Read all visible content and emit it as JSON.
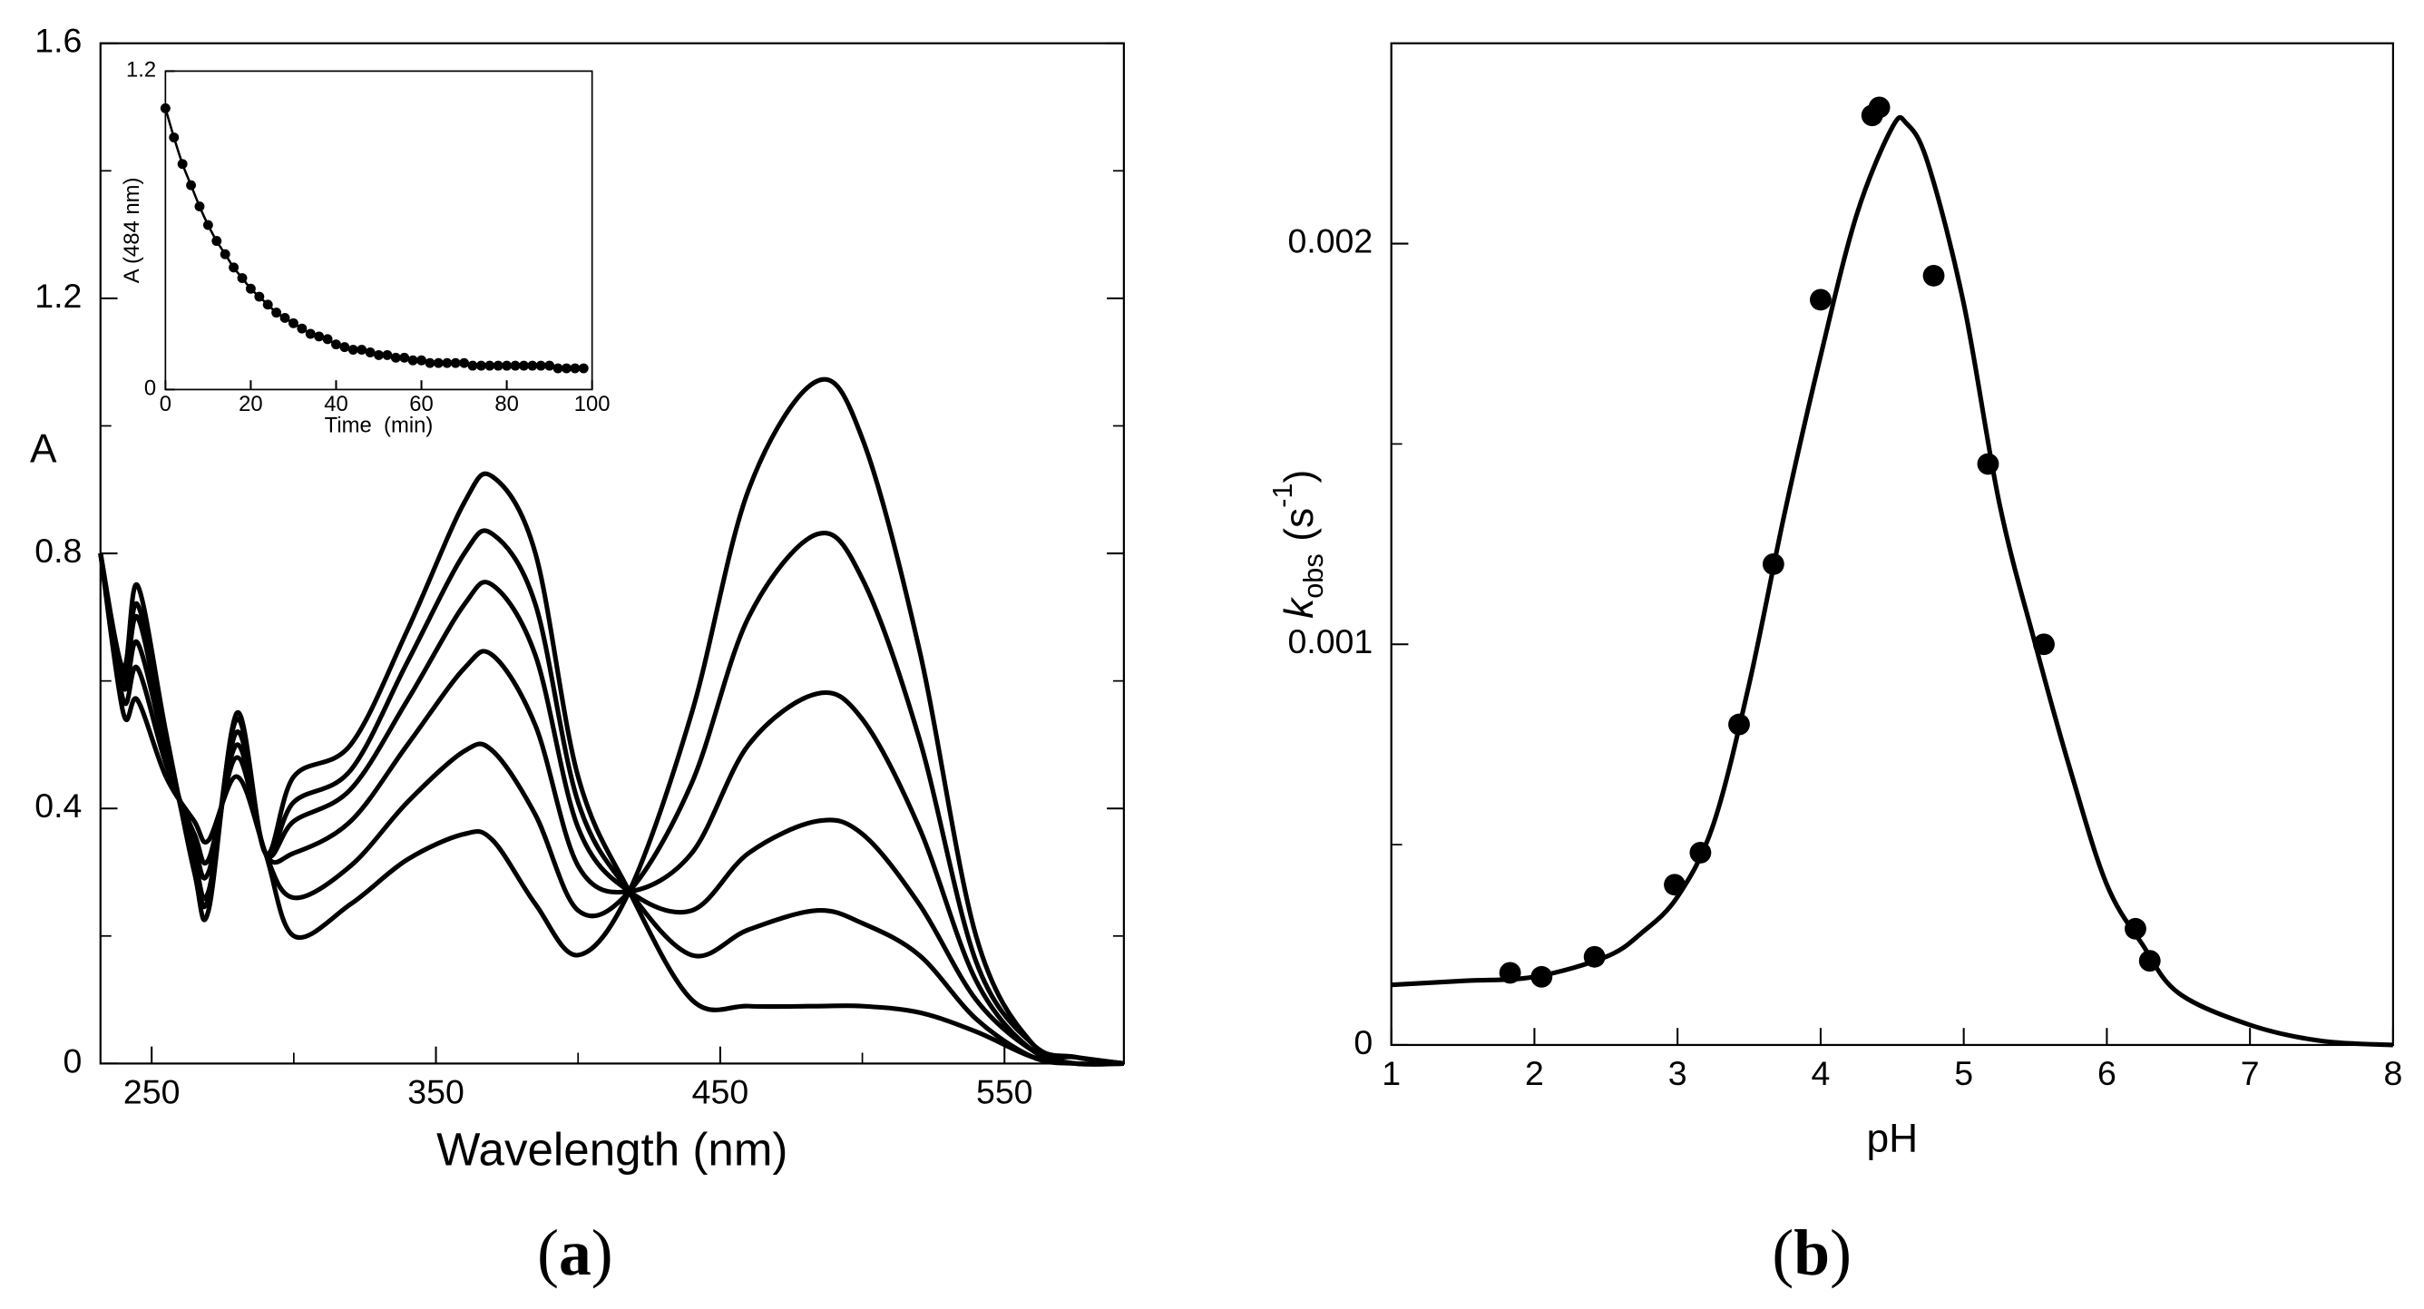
{
  "chart_data": [
    {
      "type": "line",
      "x": [
        232,
        240,
        245,
        255,
        265,
        270,
        280,
        290,
        300,
        320,
        340,
        360,
        370,
        385,
        400,
        418,
        440,
        460,
        484,
        500,
        520,
        540,
        560,
        575,
        592
      ],
      "series": [
        {
          "color": "#000000",
          "values": [
            0.8,
            0.55,
            0.57,
            0.45,
            0.38,
            0.35,
            0.45,
            0.33,
            0.2,
            0.25,
            0.32,
            0.36,
            0.35,
            0.25,
            0.17,
            0.27,
            0.55,
            0.9,
            1.07,
            0.98,
            0.65,
            0.2,
            0.03,
            0.01,
            0.0
          ]
        },
        {
          "color": "#000000",
          "values": [
            0.8,
            0.57,
            0.62,
            0.47,
            0.36,
            0.32,
            0.48,
            0.33,
            0.26,
            0.31,
            0.41,
            0.49,
            0.49,
            0.39,
            0.24,
            0.27,
            0.44,
            0.7,
            0.83,
            0.76,
            0.51,
            0.16,
            0.03,
            0.01,
            0.0
          ]
        },
        {
          "color": "#000000",
          "values": [
            0.8,
            0.59,
            0.66,
            0.49,
            0.34,
            0.3,
            0.5,
            0.33,
            0.33,
            0.38,
            0.5,
            0.62,
            0.64,
            0.53,
            0.31,
            0.27,
            0.33,
            0.5,
            0.58,
            0.54,
            0.37,
            0.13,
            0.02,
            0.01,
            0.0
          ]
        },
        {
          "color": "#000000",
          "values": [
            0.8,
            0.6,
            0.7,
            0.5,
            0.32,
            0.27,
            0.52,
            0.33,
            0.38,
            0.43,
            0.57,
            0.72,
            0.75,
            0.64,
            0.37,
            0.27,
            0.24,
            0.33,
            0.38,
            0.36,
            0.25,
            0.1,
            0.02,
            0.0,
            0.0
          ]
        },
        {
          "color": "#000000",
          "values": [
            0.8,
            0.61,
            0.72,
            0.51,
            0.31,
            0.26,
            0.54,
            0.33,
            0.41,
            0.46,
            0.63,
            0.8,
            0.83,
            0.72,
            0.41,
            0.27,
            0.17,
            0.21,
            0.24,
            0.22,
            0.17,
            0.07,
            0.01,
            0.0,
            0.0
          ]
        },
        {
          "color": "#000000",
          "values": [
            0.8,
            0.62,
            0.75,
            0.52,
            0.3,
            0.24,
            0.55,
            0.33,
            0.45,
            0.5,
            0.68,
            0.88,
            0.92,
            0.8,
            0.45,
            0.27,
            0.1,
            0.09,
            0.09,
            0.09,
            0.08,
            0.05,
            0.01,
            0.0,
            0.0
          ]
        }
      ],
      "xlim": [
        232,
        592
      ],
      "ylim": [
        0,
        1.6
      ],
      "xticks": [
        250,
        350,
        450,
        550
      ],
      "xticks_minor": [
        300,
        400,
        500
      ],
      "yticks": [
        0,
        0.4,
        0.8,
        1.2,
        1.6
      ],
      "yticks_minor": [
        0.2,
        0.6,
        1.0,
        1.4
      ],
      "xlabel": "Wavelength (nm)",
      "ylabel": "A",
      "caption": {
        "open": "(",
        "letter": "a",
        "close": ")"
      }
    },
    {
      "type": "line",
      "markers": true,
      "x": [
        0,
        2,
        4,
        6,
        8,
        10,
        12,
        14,
        16,
        18,
        20,
        22,
        24,
        26,
        28,
        30,
        32,
        34,
        36,
        38,
        40,
        42,
        44,
        46,
        48,
        50,
        52,
        54,
        56,
        58,
        60,
        62,
        64,
        66,
        68,
        70,
        72,
        74,
        76,
        78,
        80,
        82,
        84,
        86,
        88,
        90,
        92,
        94,
        96,
        98
      ],
      "series": [
        {
          "color": "#000000",
          "values": [
            1.06,
            0.95,
            0.85,
            0.77,
            0.69,
            0.62,
            0.56,
            0.51,
            0.46,
            0.42,
            0.38,
            0.35,
            0.32,
            0.29,
            0.27,
            0.25,
            0.23,
            0.21,
            0.2,
            0.19,
            0.17,
            0.16,
            0.15,
            0.15,
            0.14,
            0.13,
            0.13,
            0.12,
            0.12,
            0.11,
            0.11,
            0.1,
            0.1,
            0.1,
            0.1,
            0.1,
            0.09,
            0.09,
            0.09,
            0.09,
            0.09,
            0.09,
            0.09,
            0.09,
            0.09,
            0.09,
            0.08,
            0.08,
            0.08,
            0.08
          ]
        }
      ],
      "xlim": [
        0,
        100
      ],
      "ylim": [
        0,
        1.2
      ],
      "xticks": [
        0,
        20,
        40,
        60,
        80,
        100
      ],
      "yticks": [
        0,
        1.2
      ],
      "xlabel": "Time  (min)",
      "ylabel": "A (484 nm)"
    },
    {
      "type": "scatter",
      "x": [
        1.83,
        2.05,
        2.42,
        2.98,
        3.16,
        3.43,
        3.67,
        4.0,
        4.36,
        4.41,
        4.79,
        5.17,
        5.56,
        6.2,
        6.3
      ],
      "values": [
        0.00018,
        0.00017,
        0.00022,
        0.0004,
        0.00048,
        0.0008,
        0.0012,
        0.00186,
        0.00232,
        0.00234,
        0.00192,
        0.00145,
        0.001,
        0.00029,
        0.00021
      ],
      "color": "#000000",
      "fit": {
        "x": [
          1,
          1.5,
          2,
          2.5,
          2.75,
          3,
          3.25,
          3.5,
          3.75,
          4,
          4.25,
          4.5,
          4.6,
          4.75,
          5,
          5.25,
          5.5,
          5.75,
          6,
          6.25,
          6.5,
          7,
          7.5,
          8
        ],
        "values": [
          0.00015,
          0.00016,
          0.00017,
          0.00022,
          0.00028,
          0.00037,
          0.00055,
          0.0009,
          0.00133,
          0.00172,
          0.00207,
          0.00229,
          0.0023,
          0.0022,
          0.00185,
          0.00135,
          0.001,
          0.00068,
          0.0004,
          0.00025,
          0.00013,
          5e-05,
          1e-05,
          0
        ]
      },
      "xlim": [
        1,
        8
      ],
      "ylim": [
        0,
        0.0025
      ],
      "xticks": [
        1,
        2,
        3,
        4,
        5,
        6,
        7,
        8
      ],
      "yticks": [
        0,
        0.001,
        0.002
      ],
      "yticks_minor": [
        0.0005,
        0.0015
      ],
      "xlabel": "pH",
      "ylabel": {
        "symbol": "k",
        "subscript": "obs",
        "unit": "(s",
        "exponent": "-1",
        "close": ")"
      },
      "caption": {
        "open": "(",
        "letter": "b",
        "close": ")"
      }
    }
  ]
}
